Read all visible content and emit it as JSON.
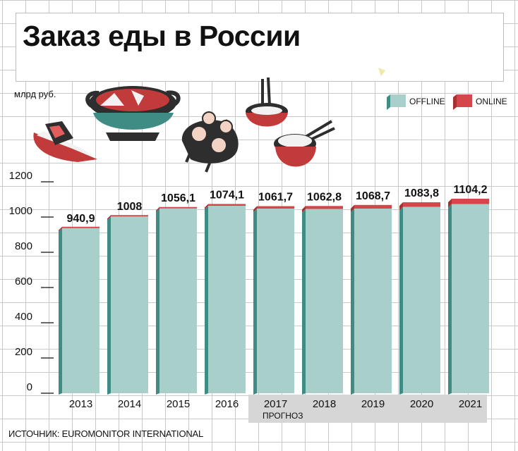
{
  "title": "Заказ еды в России",
  "unit": "млрд руб.",
  "source": "ИСТОЧНИК: EUROMONITOR INTERNATIONAL",
  "forecast_label": "ПРОГНОЗ",
  "colors": {
    "offline_face": "#a9cfcb",
    "offline_side": "#3f8c84",
    "online_face": "#d4464a",
    "online_top": "#e07c7a",
    "forecast_bg": "#d6d6d6"
  },
  "chart_data": {
    "type": "bar",
    "stacked": true,
    "categories": [
      "2013",
      "2014",
      "2015",
      "2016",
      "2017",
      "2018",
      "2019",
      "2020",
      "2021"
    ],
    "totals": [
      940.9,
      1008,
      1056.1,
      1074.1,
      1061.7,
      1062.8,
      1068.7,
      1083.8,
      1104.2
    ],
    "total_labels": [
      "940,9",
      "1008",
      "1056,1",
      "1074,1",
      "1061,7",
      "1062,8",
      "1068,7",
      "1083,8",
      "1104,2"
    ],
    "series": [
      {
        "name": "OFFLINE",
        "values": [
          937,
          1003,
          1049,
          1064,
          1048,
          1046,
          1048,
          1058,
          1074
        ]
      },
      {
        "name": "ONLINE",
        "values": [
          3.9,
          5,
          7.1,
          10.1,
          13.7,
          16.8,
          20.7,
          25.8,
          30.2
        ]
      }
    ],
    "yticks": [
      0,
      200,
      400,
      600,
      800,
      1000,
      1200
    ],
    "ylim": [
      0,
      1200
    ],
    "forecast_from": "2017",
    "legend_position": "top-right",
    "grid": true
  }
}
